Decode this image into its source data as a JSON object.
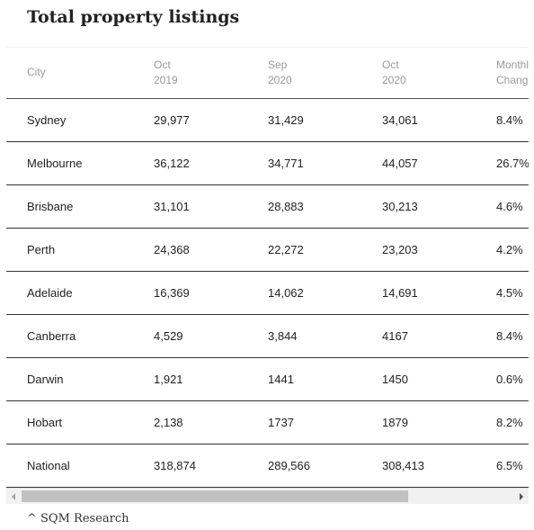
{
  "title": "Total property listings",
  "table": {
    "headers": [
      {
        "line1": "City",
        "line2": ""
      },
      {
        "line1": "Oct",
        "line2": "2019"
      },
      {
        "line1": "Sep",
        "line2": "2020"
      },
      {
        "line1": "Oct",
        "line2": "2020"
      },
      {
        "line1": "Monthly",
        "line2": "Change"
      }
    ],
    "rows": [
      [
        "Sydney",
        "29,977",
        "31,429",
        "34,061",
        "8.4%"
      ],
      [
        "Melbourne",
        "36,122",
        "34,771",
        "44,057",
        "26.7%"
      ],
      [
        "Brisbane",
        "31,101",
        "28,883",
        "30,213",
        "4.6%"
      ],
      [
        "Perth",
        "24,368",
        "22,272",
        "23,203",
        "4.2%"
      ],
      [
        "Adelaide",
        "16,369",
        "14,062",
        "14,691",
        "4.5%"
      ],
      [
        "Canberra",
        "4,529",
        "3,844",
        "4167",
        "8.4%"
      ],
      [
        "Darwin",
        "1,921",
        "1441",
        "1450",
        "0.6%"
      ],
      [
        "Hobart",
        "2,138",
        "1737",
        "1879",
        "8.2%"
      ],
      [
        "National",
        "318,874",
        "289,566",
        "308,413",
        "6.5%"
      ]
    ]
  },
  "scrollbar": {
    "left_arrow_icon": "chevron-left-icon",
    "right_arrow_icon": "chevron-right-icon",
    "position_fraction": 0.0
  },
  "source": "^ SQM Research"
}
